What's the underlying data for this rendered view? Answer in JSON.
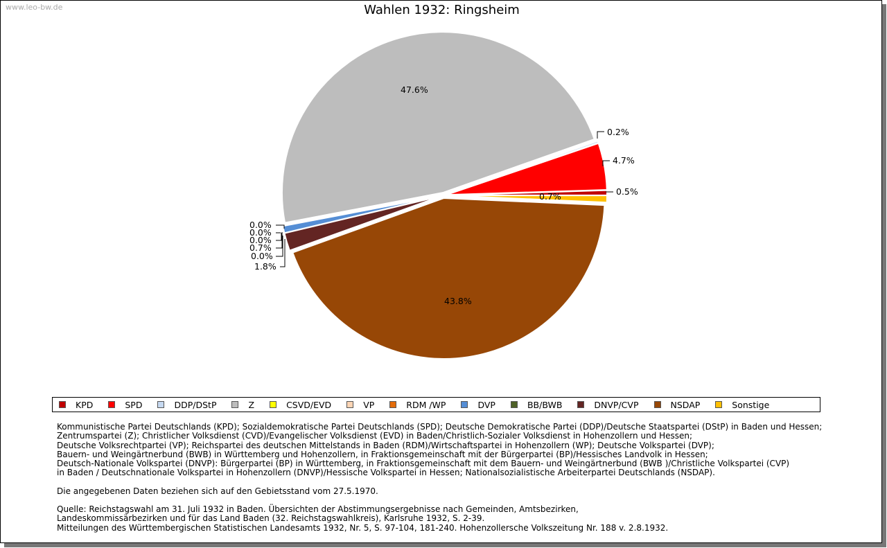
{
  "watermark": "www.leo-bw.de",
  "chart_data": {
    "type": "pie",
    "title": "Wahlen 1932: Ringsheim",
    "legend_position": "bottom",
    "slices": [
      {
        "name": "KPD",
        "value": 0.5,
        "label": "0.5%",
        "color": "#c00000"
      },
      {
        "name": "SPD",
        "value": 4.7,
        "label": "4.7%",
        "color": "#ff0000"
      },
      {
        "name": "DDP/DStP",
        "value": 0.2,
        "label": "0.2%",
        "color": "#c6d9f1"
      },
      {
        "name": "Z",
        "value": 47.6,
        "label": "47.6%",
        "color": "#bdbdbd"
      },
      {
        "name": "CSVD/EVD",
        "value": 0.0,
        "label": "0.0%",
        "color": "#ffff00"
      },
      {
        "name": "VP",
        "value": 0.0,
        "label": "0.0%",
        "color": "#fcd5b5"
      },
      {
        "name": "RDM /WP",
        "value": 0.0,
        "label": "0.0%",
        "color": "#e46c0a"
      },
      {
        "name": "DVP",
        "value": 0.7,
        "label": "0.7%",
        "color": "#558ed5"
      },
      {
        "name": "BB/BWB",
        "value": 0.0,
        "label": "0.0%",
        "color": "#4f6228"
      },
      {
        "name": "DNVP/CVP",
        "value": 1.8,
        "label": "1.8%",
        "color": "#632523"
      },
      {
        "name": "NSDAP",
        "value": 43.8,
        "label": "43.8%",
        "color": "#974706"
      },
      {
        "name": "Sonstige",
        "value": 0.7,
        "label": "0.7%",
        "color": "#ffc000"
      }
    ]
  },
  "notes": {
    "parties": [
      "Kommunistische Partei Deutschlands (KPD); Sozialdemokratische Partei Deutschlands (SPD); Deutsche Demokratische Partei (DDP)/Deutsche Staatspartei (DStP) in Baden und Hessen;",
      "Zentrumspartei (Z); Christlicher Volksdienst (CVD)/Evangelischer Volksdienst (EVD) in Baden/Christlich-Sozialer Volksdienst in Hohenzollern und Hessen;",
      "Deutsche Volksrechtpartei (VP); Reichspartei des deutschen Mittelstands in Baden (RDM)/Wirtschaftspartei in Hohenzollern (WP); Deutsche Volkspartei (DVP);",
      "Bauern- und Weingärtnerbund (BWB) in Württemberg und Hohenzollern, in Fraktionsgemeinschaft mit der Bürgerpartei (BP)/Hessisches Landvolk in Hessen;",
      "Deutsch-Nationale Volkspartei (DNVP): Bürgerpartei (BP) in Württemberg, in Fraktionsgemeinschaft mit dem Bauern- und Weingärtnerbund (BWB )/Christliche Volkspartei (CVP)",
      "in Baden / Deutschnationale Volkspartei in Hohenzollern (DNVP)/Hessische Volkspartei in Hessen; Nationalsozialistische Arbeiterpartei Deutschlands (NSDAP)."
    ],
    "gebietsstand": "Die angegebenen Daten beziehen sich auf den Gebietsstand vom 27.5.1970.",
    "quelle": [
      "Quelle: Reichstagswahl am 31. Juli 1932 in Baden. Übersichten der Abstimmungsergebnisse nach Gemeinden, Amtsbezirken,",
      "Landeskommissärbezirken und für das Land Baden (32. Reichstagswahlkreis), Karlsruhe 1932, S. 2-39.",
      "Mitteilungen des Württembergischen Statistischen Landesamts 1932, Nr. 5, S. 97-104, 181-240. Hohenzollersche Volkszeitung Nr. 188 v. 2.8.1932."
    ]
  }
}
